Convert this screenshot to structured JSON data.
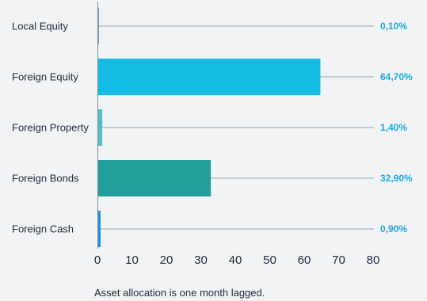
{
  "chart_data": {
    "type": "bar",
    "orientation": "horizontal",
    "categories": [
      "Local Equity",
      "Foreign Equity",
      "Foreign Property",
      "Foreign Bonds",
      "Foreign Cash"
    ],
    "values": [
      0.1,
      64.7,
      1.4,
      32.9,
      0.9
    ],
    "value_labels": [
      "0,10%",
      "64,70%",
      "1,40%",
      "32,90%",
      "0,90%"
    ],
    "colors": [
      "#0b4e6e",
      "#14bbe3",
      "#4fc0c8",
      "#229e9c",
      "#1a8fd6"
    ],
    "xlim": [
      0,
      80
    ],
    "xticks": [
      0,
      10,
      20,
      30,
      40,
      50,
      60,
      70,
      80
    ],
    "xtick_labels": [
      "0",
      "10",
      "20",
      "30",
      "40",
      "50",
      "60",
      "70",
      "80"
    ],
    "grid": false,
    "legend": "none",
    "title": "",
    "xlabel": "",
    "ylabel": ""
  },
  "caption": "Asset allocation is one month lagged.",
  "colors": {
    "background": "#f2f3f5",
    "value_label": "#1aa9df",
    "text": "#1f2a3c"
  }
}
